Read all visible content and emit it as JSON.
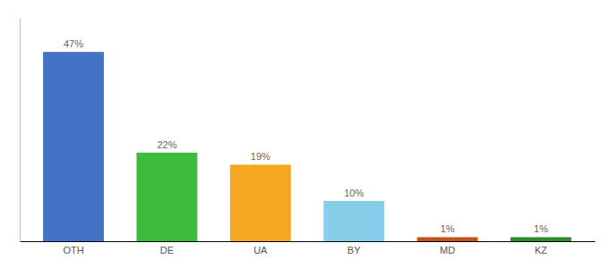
{
  "chart_data": {
    "type": "bar",
    "categories": [
      "OTH",
      "DE",
      "UA",
      "BY",
      "MD",
      "KZ"
    ],
    "values": [
      47,
      22,
      19,
      10,
      1,
      1
    ],
    "value_labels": [
      "47%",
      "22%",
      "19%",
      "10%",
      "1%",
      "1%"
    ],
    "colors": [
      "#4472c4",
      "#3dbb3d",
      "#f5a623",
      "#87ceeb",
      "#c0531a",
      "#2e8b2e"
    ],
    "ylim": [
      0,
      55.46
    ],
    "data_labels": true,
    "tick_labels": "x",
    "grid": false
  }
}
